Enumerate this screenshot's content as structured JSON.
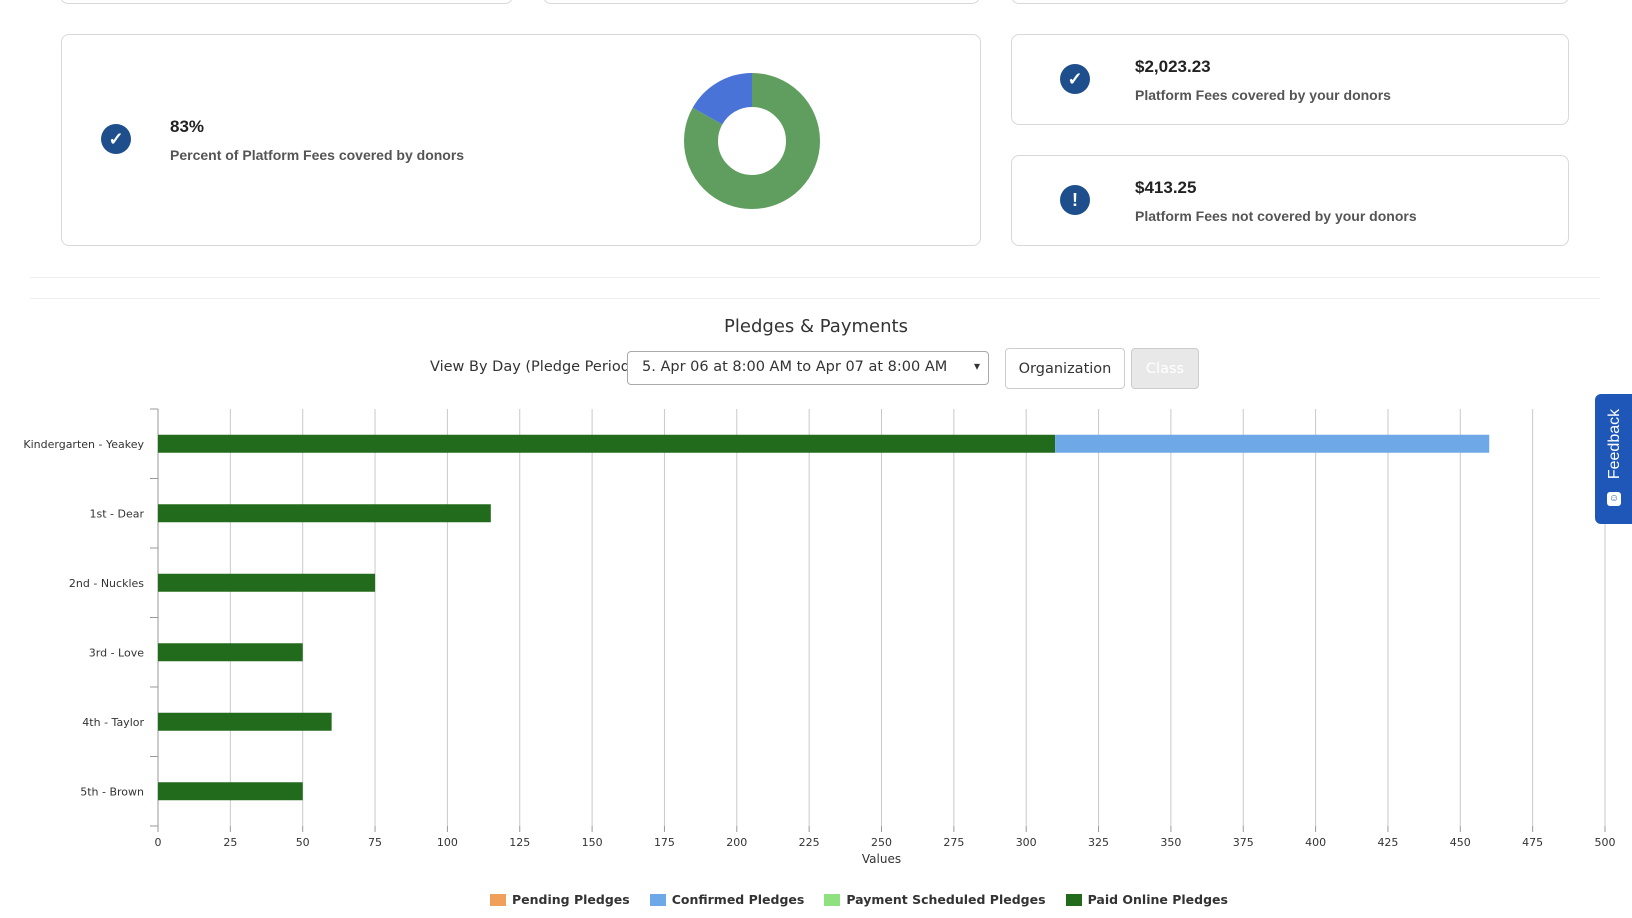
{
  "fee_summary": {
    "percent_value": "83%",
    "percent_label": "Percent of Platform Fees covered by donors",
    "covered_amount": "$2,023.23",
    "covered_label": "Platform Fees covered by your donors",
    "not_covered_amount": "$413.25",
    "not_covered_label": "Platform Fees not covered by your donors",
    "donut": {
      "covered_fraction": 0.83,
      "covered_color": "#5f9e5f",
      "not_covered_color": "#4a73d8"
    }
  },
  "section": {
    "title": "Pledges & Payments",
    "filter_label": "View By Day (Pledge Period)",
    "selected_period": "5. Apr 06 at 8:00 AM to Apr 07 at 8:00 AM",
    "organization_button": "Organization",
    "class_button": "Class"
  },
  "feedback": {
    "label": "Feedback"
  },
  "chart_data": {
    "type": "bar",
    "orientation": "horizontal",
    "stacked": true,
    "categories": [
      "Kindergarten - Yeakey",
      "1st - Dear",
      "2nd - Nuckles",
      "3rd - Love",
      "4th - Taylor",
      "5th - Brown"
    ],
    "series": [
      {
        "name": "Pending Pledges",
        "color": "#f0a05a",
        "values": [
          0,
          0,
          0,
          0,
          0,
          0
        ]
      },
      {
        "name": "Confirmed Pledges",
        "color": "#6fa8e6",
        "values": [
          150,
          0,
          0,
          0,
          0,
          0
        ]
      },
      {
        "name": "Payment Scheduled Pledges",
        "color": "#8fe07f",
        "values": [
          0,
          0,
          0,
          0,
          0,
          0
        ]
      },
      {
        "name": "Paid Online Pledges",
        "color": "#236b1c",
        "values": [
          310,
          115,
          75,
          50,
          60,
          50
        ]
      }
    ],
    "xlabel": "Values",
    "xlim": [
      0,
      500
    ],
    "xticks": [
      0,
      25,
      50,
      75,
      100,
      125,
      150,
      175,
      200,
      225,
      250,
      275,
      300,
      325,
      350,
      375,
      400,
      425,
      450,
      475,
      500
    ],
    "grid": true,
    "legend_position": "bottom"
  }
}
